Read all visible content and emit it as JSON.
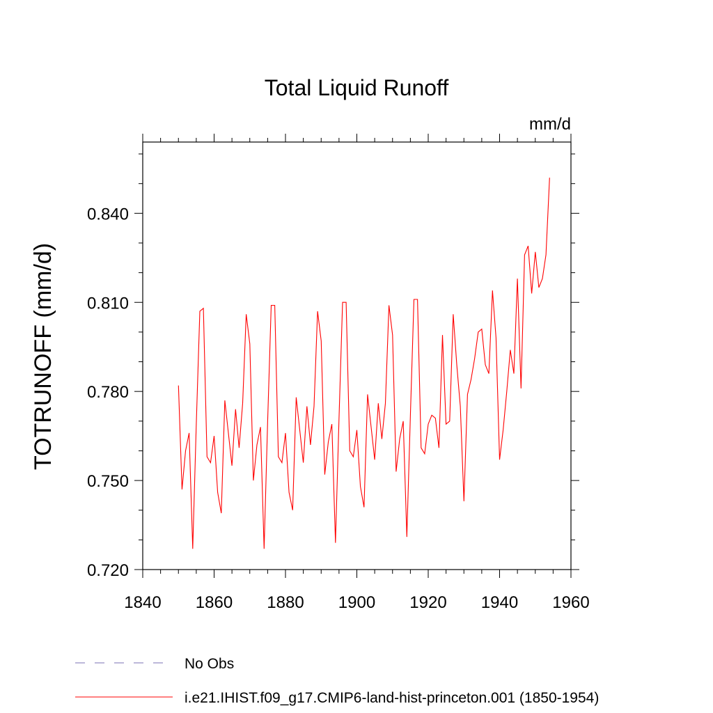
{
  "chart_data": {
    "type": "line",
    "title": "Total Liquid Runoff",
    "units": "mm/d",
    "xlabel": "",
    "ylabel": "TOTRUNOFF  (mm/d)",
    "xlim": [
      1840,
      1960
    ],
    "ylim": [
      0.72,
      0.864
    ],
    "x_ticks": [
      1840,
      1860,
      1880,
      1900,
      1920,
      1940,
      1960
    ],
    "x_tick_labels": [
      "1840",
      "1860",
      "1880",
      "1900",
      "1920",
      "1940",
      "1960"
    ],
    "y_ticks": [
      0.72,
      0.75,
      0.78,
      0.81,
      0.84
    ],
    "y_tick_labels": [
      "0.720",
      "0.750",
      "0.780",
      "0.810",
      "0.840"
    ],
    "grid": false,
    "legend_position": "bottom-left",
    "series": [
      {
        "name": "No Obs",
        "color": "#7a6fb5",
        "dash": "dashed",
        "x": [],
        "y": []
      },
      {
        "name": "i.e21.IHIST.f09_g17.CMIP6-land-hist-princeton.001 (1850-1954)",
        "color": "#ff0000",
        "dash": "solid",
        "x": [
          1850,
          1851,
          1852,
          1853,
          1854,
          1855,
          1856,
          1857,
          1858,
          1859,
          1860,
          1861,
          1862,
          1863,
          1864,
          1865,
          1866,
          1867,
          1868,
          1869,
          1870,
          1871,
          1872,
          1873,
          1874,
          1875,
          1876,
          1877,
          1878,
          1879,
          1880,
          1881,
          1882,
          1883,
          1884,
          1885,
          1886,
          1887,
          1888,
          1889,
          1890,
          1891,
          1892,
          1893,
          1894,
          1895,
          1896,
          1897,
          1898,
          1899,
          1900,
          1901,
          1902,
          1903,
          1904,
          1905,
          1906,
          1907,
          1908,
          1909,
          1910,
          1911,
          1912,
          1913,
          1914,
          1915,
          1916,
          1917,
          1918,
          1919,
          1920,
          1921,
          1922,
          1923,
          1924,
          1925,
          1926,
          1927,
          1928,
          1929,
          1930,
          1931,
          1932,
          1933,
          1934,
          1935,
          1936,
          1937,
          1938,
          1939,
          1940,
          1941,
          1942,
          1943,
          1944,
          1945,
          1946,
          1947,
          1948,
          1949,
          1950,
          1951,
          1952,
          1953,
          1954
        ],
        "y": [
          0.782,
          0.747,
          0.76,
          0.766,
          0.727,
          0.769,
          0.807,
          0.808,
          0.758,
          0.756,
          0.765,
          0.746,
          0.739,
          0.777,
          0.766,
          0.755,
          0.774,
          0.761,
          0.776,
          0.806,
          0.796,
          0.75,
          0.762,
          0.768,
          0.727,
          0.77,
          0.809,
          0.809,
          0.758,
          0.756,
          0.766,
          0.746,
          0.74,
          0.778,
          0.767,
          0.756,
          0.775,
          0.762,
          0.775,
          0.807,
          0.797,
          0.752,
          0.763,
          0.769,
          0.729,
          0.771,
          0.81,
          0.81,
          0.76,
          0.758,
          0.767,
          0.748,
          0.741,
          0.779,
          0.768,
          0.757,
          0.776,
          0.764,
          0.776,
          0.809,
          0.799,
          0.753,
          0.764,
          0.77,
          0.731,
          0.772,
          0.811,
          0.811,
          0.761,
          0.759,
          0.769,
          0.772,
          0.771,
          0.761,
          0.799,
          0.769,
          0.77,
          0.806,
          0.789,
          0.775,
          0.743,
          0.779,
          0.784,
          0.791,
          0.8,
          0.801,
          0.789,
          0.786,
          0.814,
          0.798,
          0.757,
          0.767,
          0.78,
          0.794,
          0.786,
          0.818,
          0.781,
          0.826,
          0.829,
          0.813,
          0.827,
          0.815,
          0.818,
          0.826,
          0.852
        ]
      }
    ]
  }
}
